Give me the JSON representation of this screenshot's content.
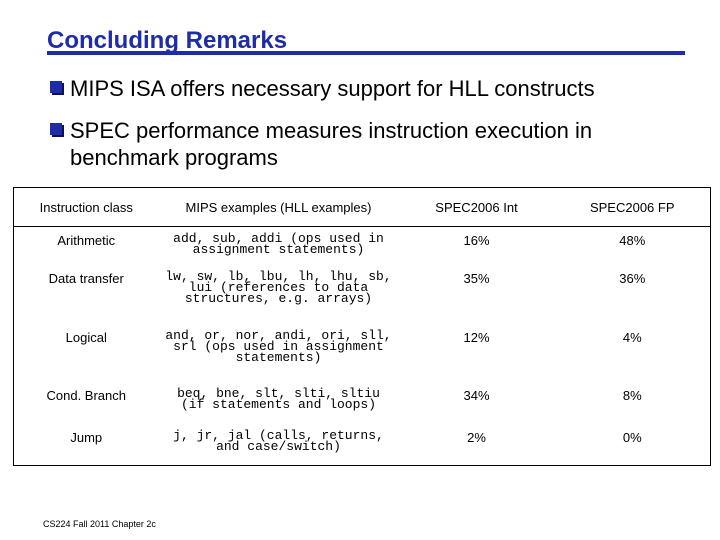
{
  "title": "Concluding Remarks",
  "bullets": [
    "MIPS ISA offers necessary support for HLL constructs",
    "SPEC performance measures instruction execution in benchmark programs"
  ],
  "table": {
    "headers": [
      "Instruction class",
      "MIPS examples (HLL examples)",
      "SPEC2006 Int",
      "SPEC2006 FP"
    ],
    "rows": [
      [
        "Arithmetic",
        "add, sub, addi (ops used in assignment statements)",
        "16%",
        "48%"
      ],
      [
        "Data transfer",
        "lw, sw, lb, lbu, lh, lhu, sb, lui (references to data structures, e.g. arrays)",
        "35%",
        "36%"
      ],
      [
        "Logical",
        "and, or, nor, andi, ori, sll, srl (ops used in assignment statements)",
        "12%",
        "4%"
      ],
      [
        "Cond. Branch",
        "beq, bne, slt, slti, sltiu (if statements and loops)",
        "34%",
        "8%"
      ],
      [
        "Jump",
        "j, jr, jal (calls, returns, and case/switch)",
        "2%",
        "0%"
      ]
    ]
  },
  "footer": "CS224 Fall 2011 Chapter 2c",
  "colors": {
    "accent": "#1f2ca8"
  }
}
